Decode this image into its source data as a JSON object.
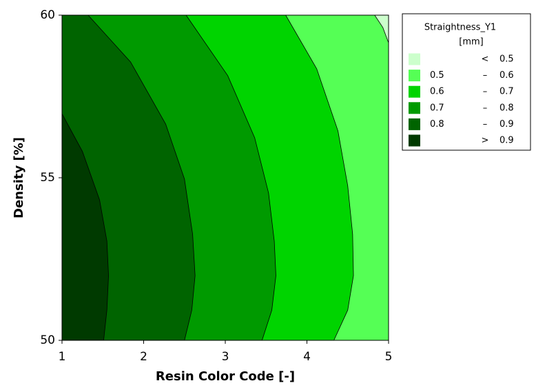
{
  "chart_data": {
    "type": "contour",
    "x_label": "Resin Color Code [-]",
    "y_label": "Density [%]",
    "xlim": [
      1,
      5
    ],
    "xticks": [
      1,
      2,
      3,
      4,
      5
    ],
    "ylim": [
      50,
      60
    ],
    "yticks": [
      50,
      55,
      60
    ],
    "legend_title": "Straightness_Y1",
    "legend_unit": "[mm]",
    "legend": [
      {
        "color": "#ccffcc",
        "sep": "<",
        "to": 0.5
      },
      {
        "color": "#55ff55",
        "from": 0.5,
        "sep": "–",
        "to": 0.6
      },
      {
        "color": "#00d400",
        "from": 0.6,
        "sep": "–",
        "to": 0.7
      },
      {
        "color": "#009a00",
        "from": 0.7,
        "sep": "–",
        "to": 0.8
      },
      {
        "color": "#006400",
        "from": 0.8,
        "sep": "–",
        "to": 0.9
      },
      {
        "color": "#003a00",
        "sep": ">",
        "to": 0.9
      }
    ],
    "contours": [
      {
        "level": 0.5,
        "x": [
          4.83,
          4.93,
          5
        ],
        "y": [
          60,
          59.62,
          59.15
        ]
      },
      {
        "level": 0.6,
        "x": [
          3.74,
          4.12,
          4.38,
          4.5,
          4.56,
          4.57,
          4.5,
          4.33
        ],
        "y": [
          60,
          58.35,
          56.44,
          54.75,
          53.26,
          51.99,
          50.93,
          50
        ]
      },
      {
        "level": 0.7,
        "x": [
          2.52,
          3.03,
          3.36,
          3.53,
          3.6,
          3.62,
          3.57,
          3.45
        ],
        "y": [
          60,
          58.14,
          56.23,
          54.53,
          53.05,
          51.99,
          50.93,
          50
        ]
      },
      {
        "level": 0.8,
        "x": [
          1.32,
          1.84,
          2.27,
          2.5,
          2.6,
          2.63,
          2.59,
          2.5
        ],
        "y": [
          60,
          58.56,
          56.65,
          54.96,
          53.26,
          51.99,
          50.93,
          50
        ]
      },
      {
        "level": 0.9,
        "x": [
          1,
          1.25,
          1.46,
          1.55,
          1.57,
          1.55,
          1.51
        ],
        "y": [
          56.97,
          55.81,
          54.32,
          53.05,
          51.99,
          50.93,
          50
        ]
      }
    ]
  }
}
